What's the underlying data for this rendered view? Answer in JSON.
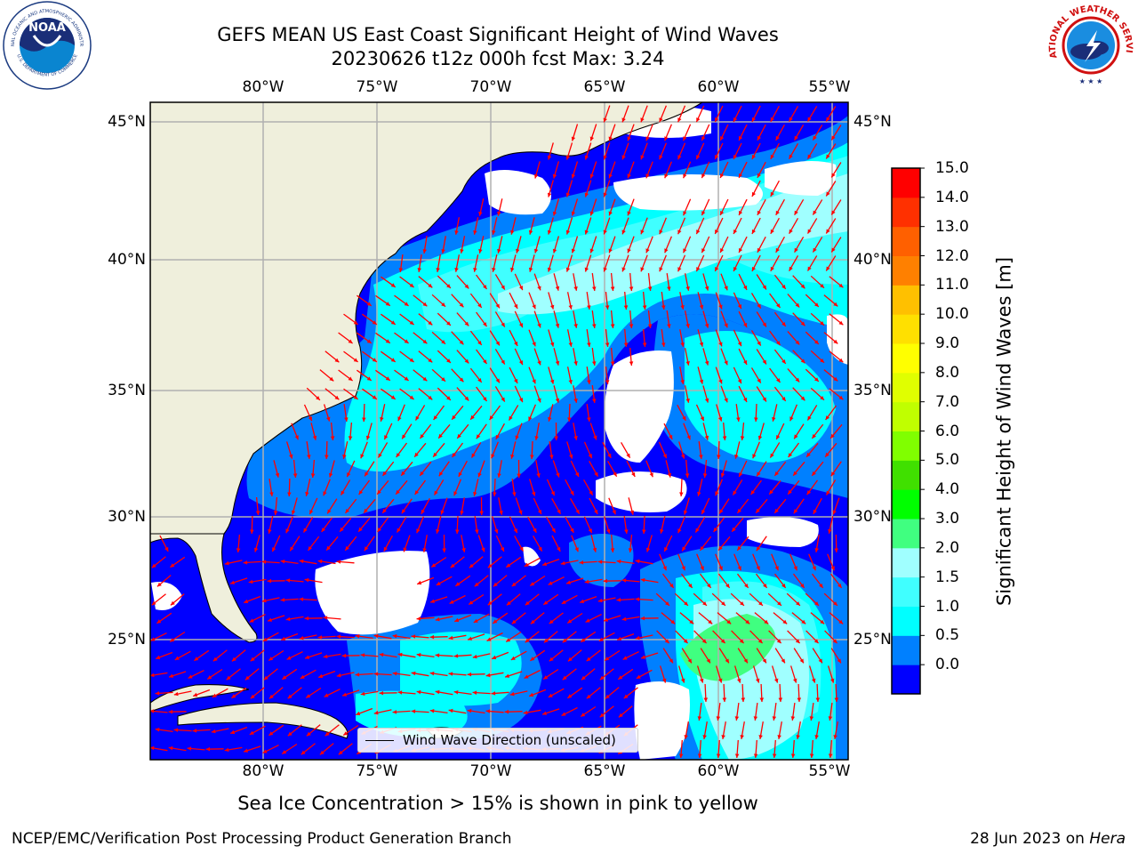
{
  "title": {
    "line1": "GEFS MEAN US East Coast Significant Height of Wind Waves",
    "line2": "20230626 t12z 000h fcst   Max: 3.24"
  },
  "map": {
    "lon_ticks": [
      "80°W",
      "75°W",
      "70°W",
      "65°W",
      "60°W",
      "55°W"
    ],
    "lat_ticks": [
      "45°N",
      "40°N",
      "35°N",
      "30°N",
      "25°N"
    ],
    "colors": {
      "land": "#efefdc",
      "coast": "#000000",
      "grid": "#b0b0b0",
      "arrow": "#ff0000",
      "nodata": "#ffffff"
    }
  },
  "legend": {
    "label": "Wind Wave Direction (unscaled)"
  },
  "colorbar": {
    "label": "Significant Height of Wind Waves [m]",
    "ticks": [
      "15.0",
      "14.0",
      "13.0",
      "12.0",
      "11.0",
      "10.0",
      "9.0",
      "8.0",
      "7.0",
      "6.0",
      "5.0",
      "4.0",
      "3.0",
      "2.0",
      "1.5",
      "1.0",
      "0.5",
      "0.0"
    ],
    "colors_bottom_to_top": [
      "#0000ff",
      "#0080ff",
      "#00ffff",
      "#40ffff",
      "#a0ffff",
      "#40ff80",
      "#00ff00",
      "#40e000",
      "#80ff00",
      "#c0ff00",
      "#e0ff00",
      "#ffff00",
      "#ffe000",
      "#ffc000",
      "#ff8000",
      "#ff6000",
      "#ff3000",
      "#ff0000"
    ]
  },
  "logos": {
    "noaa": {
      "text": "NOAA",
      "ring_top": "NATIONAL OCEANIC AND ATMOSPHERIC ADMINISTRATION",
      "ring_bottom": "U.S. DEPARTMENT OF COMMERCE"
    },
    "nws": {
      "ring": "NATIONAL WEATHER SERVICE"
    }
  },
  "footnote": "Sea Ice Concentration > 15% is shown in pink to yellow",
  "credit_left": "NCEP/EMC/Verification Post Processing Product Generation Branch",
  "credit_right": {
    "date": "28 Jun 2023 on",
    "machine": "Hera"
  }
}
